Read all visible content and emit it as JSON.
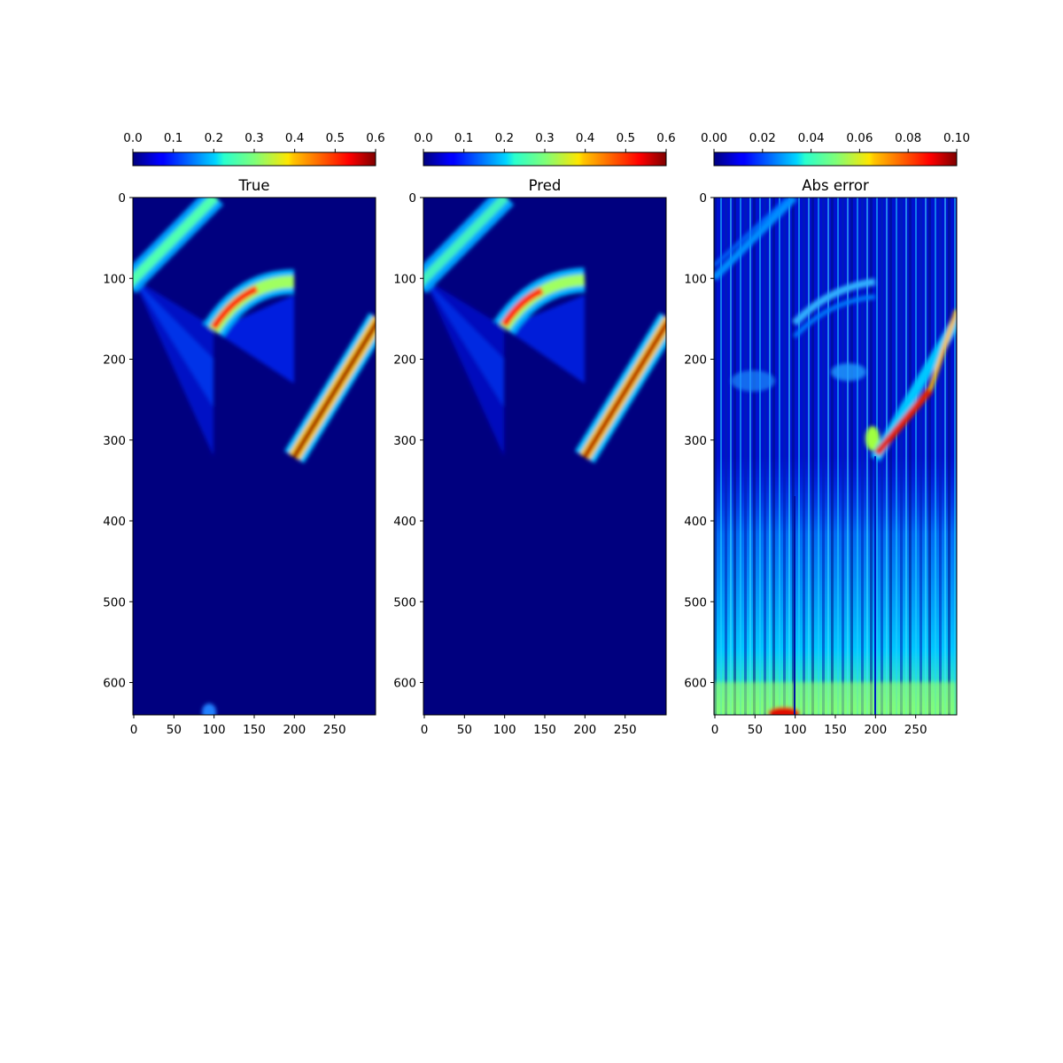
{
  "chart_data": [
    {
      "type": "heatmap",
      "title": "True",
      "colormap": "jet",
      "colorbar": {
        "range": [
          0.0,
          0.6
        ],
        "ticks": [
          "0.0",
          "0.1",
          "0.2",
          "0.3",
          "0.4",
          "0.5",
          "0.6"
        ],
        "placement": "top"
      },
      "xlim": [
        0,
        300
      ],
      "ylim": [
        640,
        0
      ],
      "xticks": [
        0,
        50,
        100,
        150,
        200,
        250
      ],
      "yticks": [
        0,
        100,
        200,
        300,
        400,
        500,
        600
      ],
      "features": [
        {
          "kind": "band",
          "from": [
            0,
            100
          ],
          "to": [
            100,
            0
          ],
          "peak": 0.22,
          "width": 11
        },
        {
          "kind": "fan",
          "apex": [
            0,
            100
          ],
          "to_top": [
            100,
            160
          ],
          "to_bottom": [
            100,
            320
          ],
          "peak": 0.12
        },
        {
          "kind": "curved_band",
          "from": [
            100,
            165
          ],
          "to": [
            200,
            100
          ],
          "peak": 0.52,
          "width": 12
        },
        {
          "kind": "fan",
          "apex": [
            100,
            165
          ],
          "to_top": [
            200,
            120
          ],
          "to_bottom": [
            200,
            230
          ],
          "peak": 0.12
        },
        {
          "kind": "band",
          "from": [
            200,
            320
          ],
          "to": [
            300,
            155
          ],
          "peak": 0.62,
          "width": 9
        },
        {
          "kind": "blob",
          "at": [
            95,
            635
          ],
          "peak": 0.2
        }
      ]
    },
    {
      "type": "heatmap",
      "title": "Pred",
      "colormap": "jet",
      "colorbar": {
        "range": [
          0.0,
          0.6
        ],
        "ticks": [
          "0.0",
          "0.1",
          "0.2",
          "0.3",
          "0.4",
          "0.5",
          "0.6"
        ],
        "placement": "top"
      },
      "xlim": [
        0,
        300
      ],
      "ylim": [
        640,
        0
      ],
      "xticks": [
        0,
        50,
        100,
        150,
        200,
        250
      ],
      "yticks": [
        0,
        100,
        200,
        300,
        400,
        500,
        600
      ],
      "features": [
        {
          "kind": "band",
          "from": [
            0,
            100
          ],
          "to": [
            100,
            0
          ],
          "peak": 0.2,
          "width": 11
        },
        {
          "kind": "fan",
          "apex": [
            0,
            100
          ],
          "to_top": [
            100,
            160
          ],
          "to_bottom": [
            100,
            320
          ],
          "peak": 0.1
        },
        {
          "kind": "curved_band",
          "from": [
            100,
            160
          ],
          "to": [
            200,
            100
          ],
          "peak": 0.5,
          "width": 12
        },
        {
          "kind": "fan",
          "apex": [
            100,
            160
          ],
          "to_top": [
            200,
            120
          ],
          "to_bottom": [
            200,
            230
          ],
          "peak": 0.11
        },
        {
          "kind": "band",
          "from": [
            200,
            320
          ],
          "to": [
            300,
            155
          ],
          "peak": 0.58,
          "width": 9
        }
      ]
    },
    {
      "type": "heatmap",
      "title": "Abs error",
      "colormap": "jet",
      "colorbar": {
        "range": [
          0.0,
          0.1
        ],
        "ticks": [
          "0.00",
          "0.02",
          "0.04",
          "0.06",
          "0.08",
          "0.10"
        ],
        "placement": "top"
      },
      "xlim": [
        0,
        300
      ],
      "ylim": [
        640,
        0
      ],
      "xticks": [
        0,
        50,
        100,
        150,
        200,
        250
      ],
      "yticks": [
        0,
        100,
        200,
        300,
        400,
        500,
        600
      ],
      "features": [
        {
          "kind": "band",
          "from": [
            0,
            100
          ],
          "to": [
            100,
            0
          ],
          "peak": 0.03,
          "width": 6
        },
        {
          "kind": "curved_band",
          "from": [
            100,
            165
          ],
          "to": [
            200,
            100
          ],
          "peak": 0.045,
          "width": 8
        },
        {
          "kind": "band",
          "from": [
            200,
            320
          ],
          "to": [
            300,
            155
          ],
          "peak": 0.09,
          "width": 7
        },
        {
          "kind": "noise_field",
          "upper_level": 0.015,
          "lower_level": 0.045,
          "from_y": 330
        },
        {
          "kind": "blob",
          "at": [
            90,
            635
          ],
          "peak": 0.1
        }
      ]
    }
  ]
}
